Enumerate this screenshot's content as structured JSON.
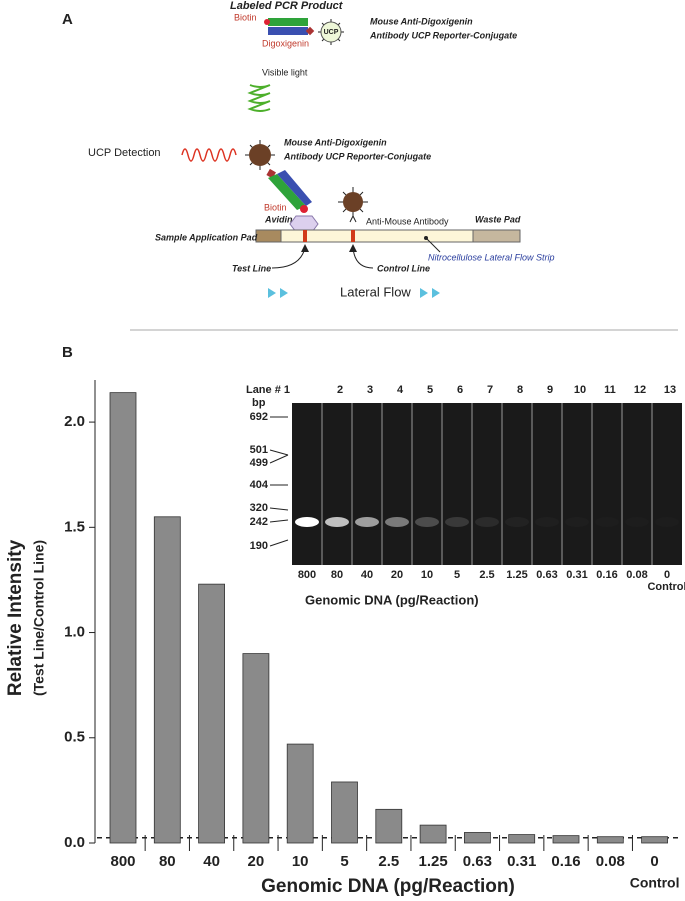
{
  "panel_a": {
    "label": "A",
    "labeled_pcr_product": "Labeled PCR Product",
    "biotin_top": "Biotin",
    "digoxigenin": "Digoxigenin",
    "ucp": "UCP",
    "conjugate_top_1": "Mouse Anti-Digoxigenin",
    "conjugate_top_2": "Antibody UCP Reporter-Conjugate",
    "visible_light": "Visible light",
    "ucp_detection": "UCP Detection",
    "conjugate_mid_1": "Mouse Anti-Digoxigenin",
    "conjugate_mid_2": "Antibody UCP Reporter-Conjugate",
    "biotin_mid": "Biotin",
    "avidin": "Avidin",
    "anti_mouse": "Anti-Mouse Antibody",
    "waste_pad": "Waste Pad",
    "sample_pad": "Sample Application Pad",
    "strip": "Nitrocellulose Lateral Flow Strip",
    "test_line": "Test Line",
    "control_line": "Control Line",
    "lateral_flow": "Lateral Flow"
  },
  "panel_b_label": "B",
  "chart_data": {
    "type": "bar",
    "y_label": "Relative Intensity",
    "y_sublabel": "(Test Line/Control Line)",
    "x_label": "Genomic DNA (pg/Reaction)",
    "categories": [
      "800",
      "80",
      "40",
      "20",
      "10",
      "5",
      "2.5",
      "1.25",
      "0.63",
      "0.31",
      "0.16",
      "0.08",
      "0"
    ],
    "control_label": "Control",
    "values": [
      2.14,
      1.55,
      1.23,
      0.9,
      0.47,
      0.29,
      0.16,
      0.085,
      0.05,
      0.04,
      0.035,
      0.03,
      0.03
    ],
    "color": "#8a8a8a",
    "ylim": [
      0,
      2.2
    ],
    "yticks": [
      {
        "value": 0,
        "label": "0.0"
      },
      {
        "value": 0.5,
        "label": "0.5"
      },
      {
        "value": 1,
        "label": "1.0"
      },
      {
        "value": 1.5,
        "label": "1.5"
      },
      {
        "value": 2,
        "label": "2.0"
      }
    ],
    "cutoff": 0.025
  },
  "gel": {
    "lane_header": "Lane # 1",
    "lanes": [
      "2",
      "3",
      "4",
      "5",
      "6",
      "7",
      "8",
      "9",
      "10",
      "11",
      "12",
      "13"
    ],
    "bp_label": "bp",
    "markers": [
      "692",
      "501",
      "499",
      "404",
      "320",
      "242",
      "190"
    ],
    "amounts": [
      "800",
      "80",
      "40",
      "20",
      "10",
      "5",
      "2.5",
      "1.25",
      "0.63",
      "0.31",
      "0.16",
      "0.08",
      "0"
    ],
    "control": "Control",
    "x_label": "Genomic DNA (pg/Reaction)"
  }
}
